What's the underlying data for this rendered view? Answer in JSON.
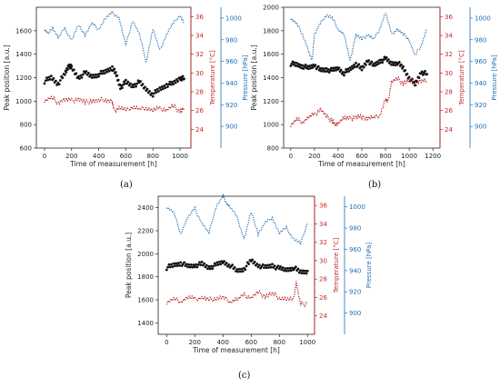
{
  "chart_data": [
    {
      "type": "scatter",
      "caption": "(a)",
      "xlabel": "Time of measurement [h]",
      "ylabel": "Peak position [a.u.]",
      "y2label": "Temperature [°C]",
      "y3label": "Pressure [hPa]",
      "xlim": [
        -60,
        1080
      ],
      "ylim": [
        600,
        1800
      ],
      "y2lim": [
        22,
        37
      ],
      "y3lim": [
        880,
        1010
      ],
      "xticks": [
        0,
        200,
        400,
        600,
        800,
        1000
      ],
      "yticks": [
        600,
        800,
        1000,
        1200,
        1400,
        1600
      ],
      "y2ticks": [
        24,
        26,
        28,
        30,
        32,
        34,
        36
      ],
      "y3ticks": [
        900,
        920,
        940,
        960,
        980,
        1000
      ],
      "colors": {
        "peak": "#111111",
        "temperature": "#b71c1c",
        "pressure": "#1f6fb5"
      },
      "series": [
        {
          "axis": "y",
          "style": "scatter",
          "x": [
            0,
            50,
            100,
            150,
            180,
            200,
            250,
            300,
            350,
            400,
            450,
            500,
            530,
            560,
            600,
            650,
            700,
            750,
            800,
            850,
            900,
            950,
            1000,
            1030
          ],
          "values": [
            1170,
            1200,
            1150,
            1230,
            1310,
            1280,
            1200,
            1240,
            1210,
            1230,
            1250,
            1290,
            1220,
            1120,
            1160,
            1130,
            1160,
            1100,
            1060,
            1100,
            1140,
            1150,
            1200,
            1190
          ]
        },
        {
          "axis": "y2",
          "style": "dotted",
          "x": [
            0,
            50,
            100,
            150,
            200,
            250,
            300,
            350,
            400,
            450,
            500,
            510,
            550,
            600,
            650,
            700,
            750,
            800,
            850,
            900,
            950,
            1000,
            1030
          ],
          "values": [
            27.1,
            27.3,
            26.9,
            27.2,
            27.0,
            27.3,
            26.8,
            27.1,
            27.0,
            27.2,
            27.0,
            26.0,
            26.3,
            26.0,
            26.4,
            26.1,
            26.3,
            26.0,
            26.2,
            26.1,
            26.4,
            26.0,
            26.2
          ]
        },
        {
          "axis": "y3",
          "style": "dotted",
          "x": [
            0,
            30,
            60,
            100,
            150,
            200,
            250,
            300,
            350,
            400,
            450,
            500,
            550,
            600,
            650,
            700,
            750,
            800,
            850,
            900,
            950,
            1000,
            1030
          ],
          "values": [
            990,
            985,
            992,
            982,
            990,
            980,
            993,
            985,
            995,
            990,
            1000,
            1005,
            1000,
            975,
            998,
            985,
            960,
            990,
            970,
            985,
            995,
            1003,
            995
          ]
        }
      ]
    },
    {
      "type": "scatter",
      "caption": "(b)",
      "xlabel": "Time of measurement [h]",
      "ylabel": "Peak position [a.u.]",
      "y2label": "Temperature [°C]",
      "y3label": "Pressure [hPa]",
      "xlim": [
        -60,
        1260
      ],
      "ylim": [
        800,
        2000
      ],
      "y2lim": [
        22,
        37
      ],
      "y3lim": [
        880,
        1010
      ],
      "xticks": [
        0,
        200,
        400,
        600,
        800,
        1000,
        1200
      ],
      "yticks": [
        800,
        1000,
        1200,
        1400,
        1600,
        1800,
        2000
      ],
      "y2ticks": [
        24,
        26,
        28,
        30,
        32,
        34,
        36
      ],
      "y3ticks": [
        900,
        920,
        940,
        960,
        980,
        1000
      ],
      "colors": {
        "peak": "#111111",
        "temperature": "#b71c1c",
        "pressure": "#1f6fb5"
      },
      "series": [
        {
          "axis": "y",
          "style": "scatter",
          "x": [
            0,
            50,
            100,
            150,
            200,
            250,
            300,
            350,
            400,
            450,
            500,
            550,
            600,
            650,
            700,
            750,
            800,
            850,
            900,
            950,
            1000,
            1050,
            1100,
            1150
          ],
          "values": [
            1520,
            1510,
            1500,
            1480,
            1510,
            1460,
            1470,
            1460,
            1480,
            1440,
            1470,
            1520,
            1470,
            1550,
            1500,
            1540,
            1560,
            1520,
            1530,
            1480,
            1400,
            1340,
            1450,
            1430
          ]
        },
        {
          "axis": "y2",
          "style": "dotted",
          "x": [
            0,
            50,
            100,
            150,
            200,
            250,
            300,
            350,
            380,
            400,
            450,
            500,
            550,
            600,
            650,
            700,
            750,
            800,
            820,
            850,
            900,
            950,
            1000,
            1050,
            1100,
            1150
          ],
          "values": [
            24.5,
            25.0,
            24.8,
            25.3,
            25.5,
            26.2,
            25.3,
            25.0,
            24.3,
            24.8,
            25.2,
            25.1,
            25.4,
            25.2,
            25.3,
            25.2,
            25.5,
            27.2,
            26.8,
            29.1,
            29.3,
            29.0,
            29.2,
            28.9,
            29.2,
            29.0
          ]
        },
        {
          "axis": "y3",
          "style": "dotted",
          "x": [
            0,
            50,
            100,
            150,
            180,
            200,
            250,
            300,
            350,
            400,
            450,
            500,
            550,
            600,
            650,
            700,
            750,
            800,
            850,
            900,
            950,
            1000,
            1050,
            1100,
            1150
          ],
          "values": [
            1000,
            995,
            985,
            970,
            960,
            985,
            995,
            1003,
            1000,
            990,
            985,
            960,
            985,
            980,
            985,
            980,
            990,
            1005,
            985,
            990,
            985,
            980,
            965,
            975,
            990
          ]
        }
      ]
    },
    {
      "type": "scatter",
      "caption": "(c)",
      "xlabel": "Time of measurement [h]",
      "ylabel": "Peak position [a.u.]",
      "y2label": "Temperature [°C]",
      "y3label": "Pressure [hPa]",
      "xlim": [
        -60,
        1050
      ],
      "ylim": [
        1300,
        2500
      ],
      "y2lim": [
        22,
        37
      ],
      "y3lim": [
        880,
        1010
      ],
      "xticks": [
        0,
        200,
        400,
        600,
        800,
        1000
      ],
      "yticks": [
        1400,
        1600,
        1800,
        2000,
        2200,
        2400
      ],
      "y2ticks": [
        24,
        26,
        28,
        30,
        32,
        34,
        36
      ],
      "y3ticks": [
        900,
        920,
        940,
        960,
        980,
        1000
      ],
      "colors": {
        "peak": "#111111",
        "temperature": "#b71c1c",
        "pressure": "#1f6fb5"
      },
      "series": [
        {
          "axis": "y",
          "style": "scatter",
          "x": [
            0,
            50,
            100,
            150,
            200,
            250,
            300,
            350,
            400,
            450,
            500,
            550,
            600,
            650,
            700,
            750,
            800,
            850,
            900,
            950,
            1000
          ],
          "values": [
            1880,
            1900,
            1920,
            1890,
            1900,
            1910,
            1880,
            1900,
            1930,
            1900,
            1850,
            1870,
            1940,
            1900,
            1880,
            1900,
            1870,
            1860,
            1880,
            1840,
            1850
          ]
        },
        {
          "axis": "y2",
          "style": "dotted",
          "x": [
            0,
            50,
            100,
            150,
            200,
            250,
            300,
            350,
            400,
            450,
            500,
            550,
            600,
            650,
            700,
            750,
            800,
            850,
            900,
            920,
            950,
            1000
          ],
          "values": [
            25.5,
            25.8,
            25.6,
            26.0,
            25.8,
            26.0,
            25.7,
            25.9,
            26.0,
            25.6,
            25.8,
            26.2,
            26.0,
            26.5,
            26.2,
            26.4,
            26.0,
            25.8,
            25.7,
            27.7,
            25.2,
            25.4
          ]
        },
        {
          "axis": "y3",
          "style": "dotted",
          "x": [
            0,
            50,
            100,
            150,
            200,
            250,
            300,
            350,
            400,
            420,
            450,
            500,
            550,
            600,
            650,
            700,
            750,
            800,
            850,
            900,
            950,
            1000
          ],
          "values": [
            1000,
            995,
            975,
            990,
            998,
            985,
            975,
            1000,
            1010,
            1005,
            1000,
            990,
            970,
            995,
            975,
            985,
            990,
            975,
            980,
            970,
            965,
            985
          ]
        }
      ]
    }
  ]
}
